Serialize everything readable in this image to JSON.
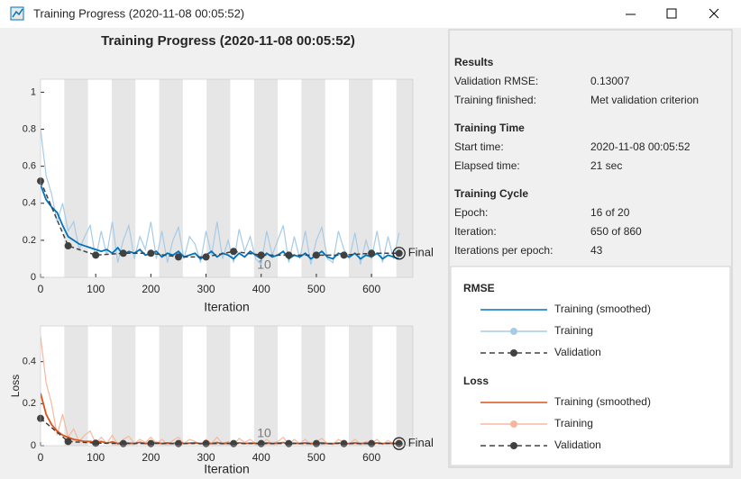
{
  "window": {
    "title": "Training Progress (2020-11-08 00:05:52)"
  },
  "chart_data": [
    {
      "type": "line",
      "title": "Training Progress (2020-11-08 00:05:52)",
      "xlabel": "Iteration",
      "legend_title": "RMSE",
      "final_label": "Final",
      "annotation": "10",
      "xlim": [
        0,
        675
      ],
      "xticks": [
        0,
        100,
        200,
        300,
        400,
        500,
        600
      ],
      "ylim": [
        0,
        1.07
      ],
      "yticks": [
        0,
        0.2,
        0.4,
        0.6,
        0.8,
        1
      ],
      "series": [
        {
          "name": "Training",
          "color": "#a6cbe7",
          "x": [
            0,
            10,
            20,
            30,
            40,
            50,
            60,
            70,
            80,
            90,
            100,
            110,
            120,
            130,
            140,
            150,
            160,
            170,
            180,
            190,
            200,
            210,
            220,
            230,
            240,
            250,
            260,
            270,
            280,
            290,
            300,
            310,
            320,
            330,
            340,
            350,
            360,
            370,
            380,
            390,
            400,
            410,
            420,
            430,
            440,
            450,
            460,
            470,
            480,
            490,
            500,
            510,
            520,
            530,
            540,
            550,
            560,
            570,
            580,
            590,
            600,
            610,
            620,
            630,
            640,
            650
          ],
          "values": [
            0.8,
            0.55,
            0.45,
            0.3,
            0.4,
            0.25,
            0.3,
            0.15,
            0.22,
            0.28,
            0.1,
            0.25,
            0.12,
            0.3,
            0.08,
            0.2,
            0.28,
            0.1,
            0.22,
            0.15,
            0.3,
            0.1,
            0.25,
            0.08,
            0.2,
            0.27,
            0.1,
            0.22,
            0.18,
            0.08,
            0.25,
            0.12,
            0.3,
            0.1,
            0.2,
            0.08,
            0.26,
            0.14,
            0.22,
            0.1,
            0.07,
            0.25,
            0.12,
            0.2,
            0.28,
            0.08,
            0.22,
            0.1,
            0.25,
            0.07,
            0.2,
            0.27,
            0.1,
            0.08,
            0.25,
            0.15,
            0.1,
            0.24,
            0.07,
            0.2,
            0.1,
            0.25,
            0.08,
            0.22,
            0.1,
            0.24
          ]
        },
        {
          "name": "Training (smoothed)",
          "color": "#0072bd",
          "x": [
            0,
            10,
            20,
            30,
            40,
            50,
            60,
            70,
            80,
            90,
            100,
            110,
            120,
            130,
            140,
            150,
            160,
            170,
            180,
            190,
            200,
            210,
            220,
            230,
            240,
            250,
            260,
            270,
            280,
            290,
            300,
            310,
            320,
            330,
            340,
            350,
            360,
            370,
            380,
            390,
            400,
            410,
            420,
            430,
            440,
            450,
            460,
            470,
            480,
            490,
            500,
            510,
            520,
            530,
            540,
            550,
            560,
            570,
            580,
            590,
            600,
            610,
            620,
            630,
            640,
            650
          ],
          "values": [
            0.5,
            0.42,
            0.38,
            0.35,
            0.28,
            0.22,
            0.2,
            0.18,
            0.17,
            0.16,
            0.15,
            0.14,
            0.15,
            0.13,
            0.16,
            0.12,
            0.14,
            0.13,
            0.15,
            0.12,
            0.13,
            0.14,
            0.11,
            0.13,
            0.12,
            0.14,
            0.11,
            0.12,
            0.13,
            0.1,
            0.12,
            0.14,
            0.11,
            0.13,
            0.12,
            0.1,
            0.13,
            0.11,
            0.14,
            0.12,
            0.1,
            0.13,
            0.11,
            0.12,
            0.14,
            0.1,
            0.12,
            0.11,
            0.13,
            0.1,
            0.12,
            0.14,
            0.11,
            0.1,
            0.13,
            0.12,
            0.11,
            0.13,
            0.1,
            0.12,
            0.11,
            0.13,
            0.1,
            0.12,
            0.11,
            0.1
          ]
        },
        {
          "name": "Validation",
          "color": "#404040",
          "dashed": true,
          "markers": true,
          "x": [
            0,
            50,
            100,
            150,
            200,
            250,
            300,
            350,
            400,
            450,
            500,
            550,
            600,
            650
          ],
          "values": [
            0.52,
            0.17,
            0.12,
            0.13,
            0.13,
            0.11,
            0.11,
            0.14,
            0.12,
            0.12,
            0.12,
            0.12,
            0.13,
            0.13
          ]
        }
      ]
    },
    {
      "type": "line",
      "xlabel": "Iteration",
      "ylabel": "Loss",
      "legend_title": "Loss",
      "final_label": "Final",
      "annotation": "10",
      "xlim": [
        0,
        675
      ],
      "xticks": [
        0,
        100,
        200,
        300,
        400,
        500,
        600
      ],
      "ylim": [
        0,
        0.57
      ],
      "yticks": [
        0,
        0.2,
        0.4
      ],
      "series": [
        {
          "name": "Training",
          "color": "#f5b89f",
          "x": [
            0,
            10,
            20,
            30,
            40,
            50,
            60,
            70,
            80,
            90,
            100,
            110,
            120,
            130,
            140,
            150,
            160,
            170,
            180,
            190,
            200,
            210,
            220,
            230,
            240,
            250,
            260,
            270,
            280,
            290,
            300,
            310,
            320,
            330,
            340,
            350,
            360,
            370,
            380,
            390,
            400,
            410,
            420,
            430,
            440,
            450,
            460,
            470,
            480,
            490,
            500,
            510,
            520,
            530,
            540,
            550,
            560,
            570,
            580,
            590,
            600,
            610,
            620,
            630,
            640,
            650
          ],
          "values": [
            0.52,
            0.3,
            0.2,
            0.05,
            0.15,
            0.04,
            0.08,
            0.02,
            0.05,
            0.07,
            0.01,
            0.04,
            0.01,
            0.05,
            0.005,
            0.03,
            0.045,
            0.01,
            0.03,
            0.015,
            0.04,
            0.01,
            0.03,
            0.005,
            0.025,
            0.04,
            0.01,
            0.03,
            0.02,
            0.005,
            0.03,
            0.01,
            0.04,
            0.01,
            0.02,
            0.005,
            0.035,
            0.015,
            0.03,
            0.01,
            0.005,
            0.03,
            0.01,
            0.02,
            0.04,
            0.005,
            0.03,
            0.01,
            0.03,
            0.005,
            0.02,
            0.035,
            0.01,
            0.005,
            0.03,
            0.015,
            0.01,
            0.03,
            0.005,
            0.02,
            0.01,
            0.03,
            0.005,
            0.025,
            0.01,
            0.03
          ]
        },
        {
          "name": "Training (smoothed)",
          "color": "#d95319",
          "x": [
            0,
            10,
            20,
            30,
            40,
            50,
            60,
            70,
            80,
            90,
            100,
            110,
            120,
            130,
            140,
            150,
            160,
            170,
            180,
            190,
            200,
            210,
            220,
            230,
            240,
            250,
            260,
            270,
            280,
            290,
            300,
            310,
            320,
            330,
            340,
            350,
            360,
            370,
            380,
            390,
            400,
            410,
            420,
            430,
            440,
            450,
            460,
            470,
            480,
            490,
            500,
            510,
            520,
            530,
            540,
            550,
            560,
            570,
            580,
            590,
            600,
            610,
            620,
            630,
            640,
            650
          ],
          "values": [
            0.25,
            0.15,
            0.1,
            0.07,
            0.05,
            0.04,
            0.03,
            0.025,
            0.02,
            0.02,
            0.015,
            0.02,
            0.012,
            0.018,
            0.01,
            0.015,
            0.012,
            0.01,
            0.016,
            0.01,
            0.012,
            0.015,
            0.01,
            0.013,
            0.01,
            0.016,
            0.01,
            0.012,
            0.014,
            0.01,
            0.013,
            0.01,
            0.015,
            0.01,
            0.012,
            0.01,
            0.014,
            0.01,
            0.012,
            0.011,
            0.01,
            0.013,
            0.01,
            0.012,
            0.015,
            0.01,
            0.012,
            0.01,
            0.013,
            0.01,
            0.012,
            0.014,
            0.01,
            0.01,
            0.013,
            0.011,
            0.01,
            0.013,
            0.01,
            0.012,
            0.01,
            0.013,
            0.01,
            0.012,
            0.01,
            0.01
          ]
        },
        {
          "name": "Validation",
          "color": "#404040",
          "dashed": true,
          "markers": true,
          "x": [
            0,
            50,
            100,
            150,
            200,
            250,
            300,
            350,
            400,
            450,
            500,
            550,
            600,
            650
          ],
          "values": [
            0.13,
            0.02,
            0.012,
            0.01,
            0.01,
            0.01,
            0.01,
            0.01,
            0.01,
            0.01,
            0.01,
            0.01,
            0.01,
            0.01
          ]
        }
      ]
    }
  ],
  "info_panel": [
    {
      "title": "Results",
      "rows": [
        [
          "Validation RMSE:",
          "0.13007"
        ],
        [
          "Training finished:",
          "Met validation criterion"
        ]
      ]
    },
    {
      "title": "Training Time",
      "rows": [
        [
          "Start time:",
          "2020-11-08 00:05:52"
        ],
        [
          "Elapsed time:",
          "21 sec"
        ]
      ]
    },
    {
      "title": "Training Cycle",
      "rows": [
        [
          "Epoch:",
          "16 of 20"
        ],
        [
          "Iteration:",
          "650 of 860"
        ],
        [
          "Iterations per epoch:",
          "43"
        ]
      ]
    }
  ]
}
